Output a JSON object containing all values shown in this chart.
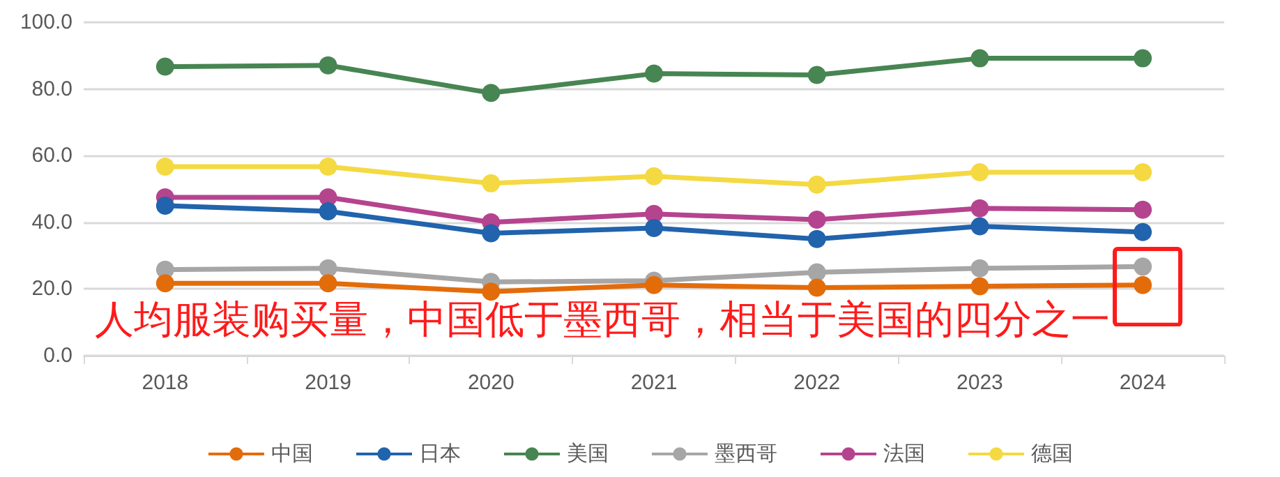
{
  "chart_data": {
    "type": "line",
    "categories": [
      "2018",
      "2019",
      "2020",
      "2021",
      "2022",
      "2023",
      "2024"
    ],
    "series": [
      {
        "name": "中国",
        "color": "#e36c0a",
        "values": [
          21.7,
          21.7,
          19.2,
          21.2,
          20.4,
          20.8,
          21.2
        ]
      },
      {
        "name": "日本",
        "color": "#2163ac",
        "values": [
          45,
          43.3,
          36.7,
          38.3,
          35,
          38.8,
          37.1
        ]
      },
      {
        "name": "美国",
        "color": "#478552",
        "values": [
          86.7,
          87.1,
          78.8,
          84.6,
          84.2,
          89.2,
          89.2
        ]
      },
      {
        "name": "墨西哥",
        "color": "#a6a6a6",
        "values": [
          25.8,
          26.2,
          22.1,
          22.5,
          25,
          26.2,
          26.7
        ]
      },
      {
        "name": "法国",
        "color": "#b5448f",
        "values": [
          47.5,
          47.5,
          40,
          42.5,
          40.8,
          44.2,
          43.8
        ]
      },
      {
        "name": "德国",
        "color": "#f4d942",
        "values": [
          56.7,
          56.7,
          51.7,
          53.8,
          51.3,
          55,
          55
        ]
      }
    ],
    "ylim": [
      0,
      100
    ],
    "yticks": [
      {
        "value": 0,
        "label": "0.0"
      },
      {
        "value": 20,
        "label": "20.0"
      },
      {
        "value": 40,
        "label": "40.0"
      },
      {
        "value": 60,
        "label": "60.0"
      },
      {
        "value": 80,
        "label": "80.0"
      },
      {
        "value": 100,
        "label": "100.0"
      }
    ],
    "grid": "y",
    "legend": "bottom",
    "marker": "circle",
    "line_style": "solid",
    "annotations": [
      "人均服装购买量，中国低于墨西哥，相当于美国的四分之一"
    ]
  }
}
